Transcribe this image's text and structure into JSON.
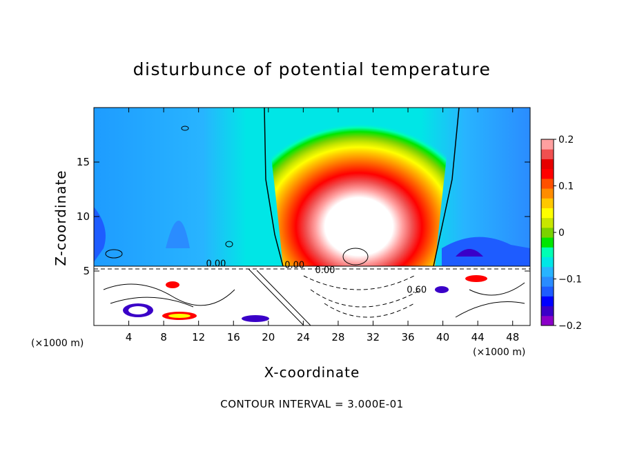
{
  "chart_data": {
    "type": "heatmap",
    "title": "disturbunce of potential temperature",
    "xlabel": "X-coordinate",
    "ylabel": "Z-coordinate",
    "x_unit_label": "(×1000 m)",
    "xlim": [
      0,
      50
    ],
    "ylim": [
      0,
      20
    ],
    "x_ticks": [
      4,
      8,
      12,
      16,
      20,
      24,
      28,
      32,
      36,
      40,
      44,
      48
    ],
    "y_ticks": [
      5,
      10,
      15
    ],
    "colorbar": {
      "range": [
        -0.2,
        0.2
      ],
      "tick_values": [
        0.2,
        0.1,
        0,
        -0.1,
        -0.2
      ],
      "tick_labels": [
        "0.2",
        "0.1",
        "0",
        "−0.1",
        "−0.2"
      ],
      "colors": [
        "#8b00c8",
        "#3a00c8",
        "#0000ff",
        "#1e5cff",
        "#2a8cff",
        "#28b4ff",
        "#00e6e6",
        "#00ffb4",
        "#00e600",
        "#7ad200",
        "#c8e600",
        "#ffff00",
        "#ffc800",
        "#ff8c00",
        "#ff5000",
        "#ff0000",
        "#e60000",
        "#f05050",
        "#ffa0a0"
      ]
    },
    "contour_labels": [
      "0.00",
      "0.00",
      "0.00",
      "0.60"
    ],
    "contour_interval": "CONTOUR INTERVAL = 3.000E-01",
    "description_values": {
      "plume_center_x": 30,
      "plume_max": 0.2,
      "surface_layer_top_z": 5.3,
      "zero_contour_left_x": 20,
      "zero_contour_right_x": 42
    }
  }
}
